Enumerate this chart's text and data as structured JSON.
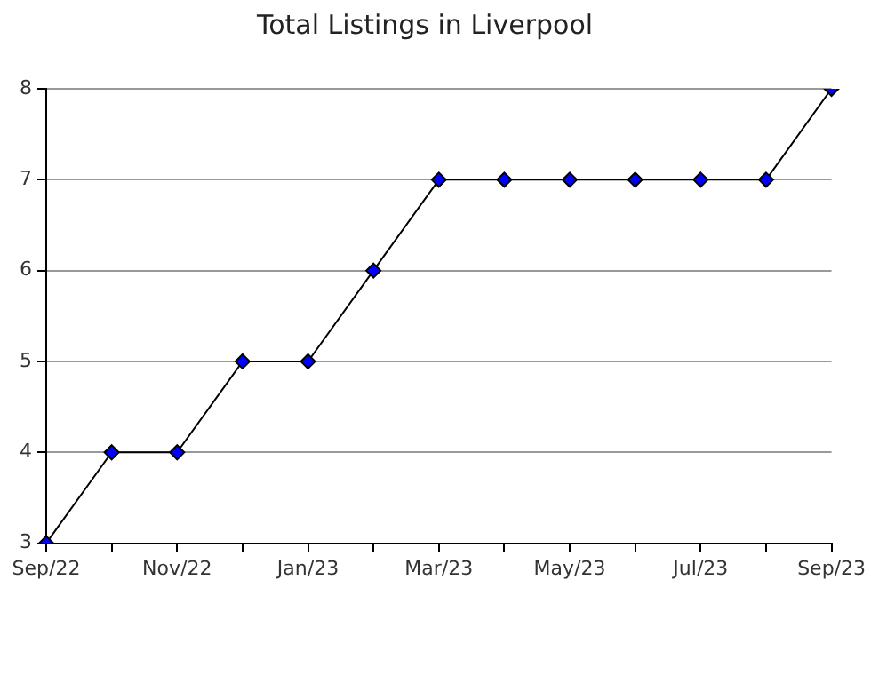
{
  "chart_data": {
    "type": "line",
    "title": "Total Listings in Liverpool",
    "categories": [
      "Sep/22",
      null,
      "Nov/22",
      null,
      "Jan/23",
      null,
      "Mar/23",
      null,
      "May/23",
      null,
      "Jul/23",
      null,
      "Sep/23"
    ],
    "series": [
      {
        "color": "#0000ff",
        "values": [
          3,
          4,
          4,
          5,
          5,
          6,
          7,
          7,
          7,
          7,
          7,
          7,
          8
        ]
      }
    ],
    "ylim": [
      3,
      8
    ],
    "yticks": [
      3,
      4,
      5,
      6,
      7,
      8
    ],
    "grid": "y",
    "legend": false,
    "marker": "diamond",
    "line_style": "solid"
  }
}
